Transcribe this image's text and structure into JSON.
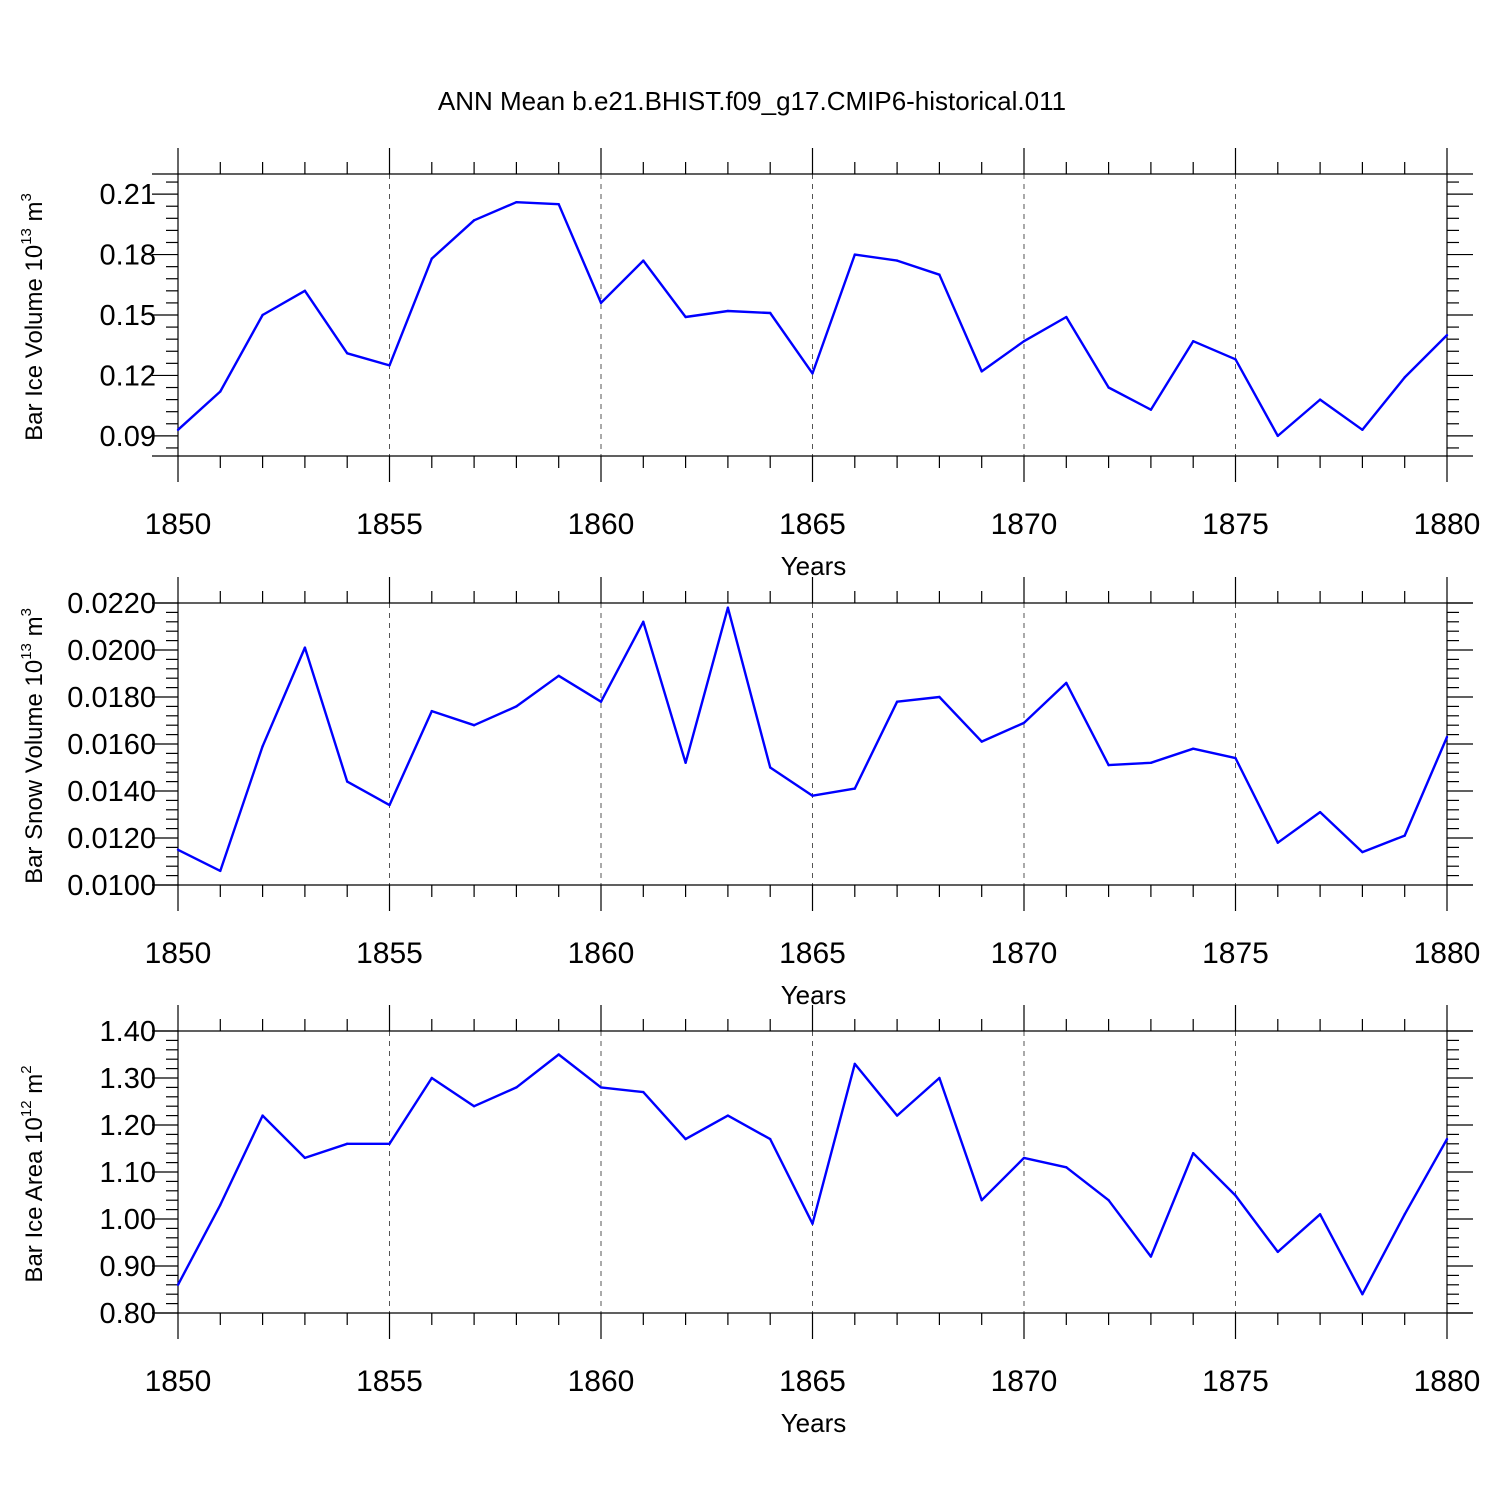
{
  "page": {
    "title": "ANN Mean b.e21.BHIST.f09_g17.CMIP6-historical.011"
  },
  "colors": {
    "series": "#0000ff"
  },
  "chart_data": [
    {
      "type": "line",
      "name": "ice-volume",
      "ylabel_main": "Bar Ice Volume 10",
      "ylabel_exp": "13",
      "ylabel_unit": " m",
      "ylabel_unit_exp": "3",
      "xlabel": "Years",
      "xlim": [
        1850,
        1880
      ],
      "ylim": [
        0.08,
        0.22
      ],
      "yticks": [
        0.09,
        0.12,
        0.15,
        0.18,
        0.21
      ],
      "ytick_labels": [
        "0.09",
        "0.12",
        "0.15",
        "0.18",
        "0.21"
      ],
      "xticks": [
        1850,
        1855,
        1860,
        1865,
        1870,
        1875,
        1880
      ],
      "xtick_labels": [
        "1850",
        "1855",
        "1860",
        "1865",
        "1870",
        "1875",
        "1880"
      ],
      "x": [
        1850,
        1851,
        1852,
        1853,
        1854,
        1855,
        1856,
        1857,
        1858,
        1859,
        1860,
        1861,
        1862,
        1863,
        1864,
        1865,
        1866,
        1867,
        1868,
        1869,
        1870,
        1871,
        1872,
        1873,
        1874,
        1875,
        1876,
        1877,
        1878,
        1879,
        1880
      ],
      "values": [
        0.093,
        0.112,
        0.15,
        0.162,
        0.131,
        0.125,
        0.178,
        0.197,
        0.206,
        0.205,
        0.156,
        0.177,
        0.149,
        0.152,
        0.151,
        0.121,
        0.18,
        0.177,
        0.17,
        0.122,
        0.137,
        0.149,
        0.114,
        0.103,
        0.137,
        0.128,
        0.09,
        0.108,
        0.093,
        0.119,
        0.14
      ]
    },
    {
      "type": "line",
      "name": "snow-volume",
      "ylabel_main": "Bar Snow Volume 10",
      "ylabel_exp": "13",
      "ylabel_unit": " m",
      "ylabel_unit_exp": "3",
      "xlabel": "Years",
      "xlim": [
        1850,
        1880
      ],
      "ylim": [
        0.01,
        0.022
      ],
      "yticks": [
        0.01,
        0.012,
        0.014,
        0.016,
        0.018,
        0.02,
        0.022
      ],
      "ytick_labels": [
        "0.0100",
        "0.0120",
        "0.0140",
        "0.0160",
        "0.0180",
        "0.0200",
        "0.0220"
      ],
      "xticks": [
        1850,
        1855,
        1860,
        1865,
        1870,
        1875,
        1880
      ],
      "xtick_labels": [
        "1850",
        "1855",
        "1860",
        "1865",
        "1870",
        "1875",
        "1880"
      ],
      "x": [
        1850,
        1851,
        1852,
        1853,
        1854,
        1855,
        1856,
        1857,
        1858,
        1859,
        1860,
        1861,
        1862,
        1863,
        1864,
        1865,
        1866,
        1867,
        1868,
        1869,
        1870,
        1871,
        1872,
        1873,
        1874,
        1875,
        1876,
        1877,
        1878,
        1879,
        1880
      ],
      "values": [
        0.0115,
        0.0106,
        0.0159,
        0.0201,
        0.0144,
        0.0134,
        0.0174,
        0.0168,
        0.0176,
        0.0189,
        0.0178,
        0.0212,
        0.0152,
        0.0218,
        0.015,
        0.0138,
        0.0141,
        0.0178,
        0.018,
        0.0161,
        0.0169,
        0.0186,
        0.0151,
        0.0152,
        0.0158,
        0.0154,
        0.0118,
        0.0131,
        0.0114,
        0.0121,
        0.0163
      ]
    },
    {
      "type": "line",
      "name": "ice-area",
      "ylabel_main": "Bar Ice Area 10",
      "ylabel_exp": "12",
      "ylabel_unit": " m",
      "ylabel_unit_exp": "2",
      "xlabel": "Years",
      "xlim": [
        1850,
        1880
      ],
      "ylim": [
        0.8,
        1.4
      ],
      "yticks": [
        0.8,
        0.9,
        1.0,
        1.1,
        1.2,
        1.3,
        1.4
      ],
      "ytick_labels": [
        "0.80",
        "0.90",
        "1.00",
        "1.10",
        "1.20",
        "1.30",
        "1.40"
      ],
      "xticks": [
        1850,
        1855,
        1860,
        1865,
        1870,
        1875,
        1880
      ],
      "xtick_labels": [
        "1850",
        "1855",
        "1860",
        "1865",
        "1870",
        "1875",
        "1880"
      ],
      "x": [
        1850,
        1851,
        1852,
        1853,
        1854,
        1855,
        1856,
        1857,
        1858,
        1859,
        1860,
        1861,
        1862,
        1863,
        1864,
        1865,
        1866,
        1867,
        1868,
        1869,
        1870,
        1871,
        1872,
        1873,
        1874,
        1875,
        1876,
        1877,
        1878,
        1879,
        1880
      ],
      "values": [
        0.86,
        1.03,
        1.22,
        1.13,
        1.16,
        1.16,
        1.3,
        1.24,
        1.28,
        1.35,
        1.28,
        1.27,
        1.17,
        1.22,
        1.17,
        0.99,
        1.33,
        1.22,
        1.3,
        1.04,
        1.13,
        1.11,
        1.04,
        0.92,
        1.14,
        1.05,
        0.93,
        1.01,
        0.84,
        1.01,
        1.17
      ]
    }
  ]
}
